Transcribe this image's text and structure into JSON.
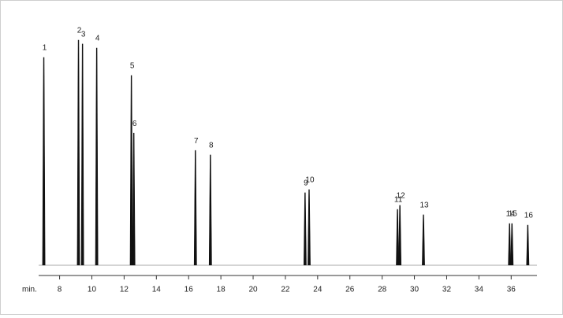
{
  "chart_data": {
    "type": "chromatogram",
    "x_unit_label": "min.",
    "x": [
      7.02,
      9.17,
      9.42,
      10.3,
      12.45,
      12.6,
      16.42,
      17.35,
      23.22,
      23.47,
      28.95,
      29.1,
      30.56,
      35.9,
      36.05,
      37.03
    ],
    "values": [
      92.3,
      100,
      98.3,
      96.5,
      84.3,
      58.7,
      51,
      49,
      32.2,
      33.6,
      24.8,
      26.6,
      22.4,
      18.5,
      18.5,
      17.8
    ],
    "peak_labels": [
      "1",
      "2",
      "3",
      "4",
      "5",
      "6",
      "7",
      "8",
      "9",
      "10",
      "11",
      "12",
      "13",
      "14",
      "15",
      "16"
    ],
    "color": "#111111",
    "xlim": [
      6.7,
      37.6
    ],
    "xticks": [
      8,
      10,
      12,
      14,
      16,
      18,
      20,
      22,
      24,
      26,
      28,
      30,
      32,
      34,
      36
    ],
    "ylim": [
      0,
      107
    ]
  }
}
